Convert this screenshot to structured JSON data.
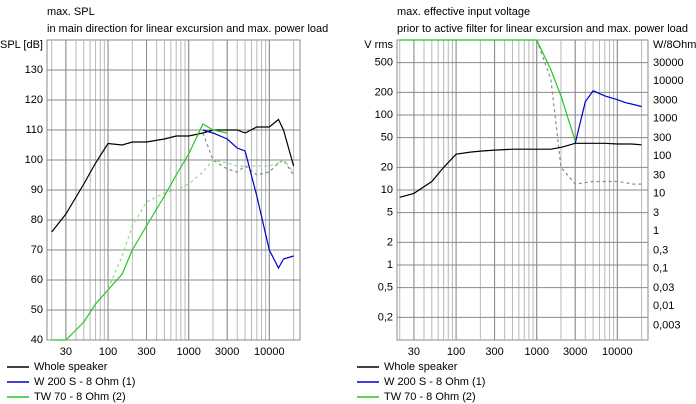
{
  "chart_data": [
    {
      "type": "line",
      "title": "max. SPL",
      "subtitle": "in main direction for linear excursion and max. power load",
      "y_label": "SPL [dB]",
      "xscale": "log",
      "xlim": [
        17.5,
        24000
      ],
      "ylim": [
        40,
        140
      ],
      "xticks": [
        30,
        100,
        300,
        1000,
        3000,
        10000
      ],
      "xgrid": [
        20,
        30,
        40,
        50,
        60,
        70,
        80,
        90,
        100,
        200,
        300,
        400,
        500,
        600,
        700,
        800,
        900,
        1000,
        2000,
        3000,
        4000,
        5000,
        6000,
        7000,
        8000,
        9000,
        10000,
        20000
      ],
      "yticks": [
        40,
        50,
        60,
        70,
        80,
        90,
        100,
        110,
        120,
        130
      ],
      "grid": true,
      "x": [
        20,
        30,
        50,
        70,
        100,
        150,
        200,
        300,
        500,
        700,
        1000,
        1500,
        2000,
        3000,
        4000,
        5000,
        7000,
        10000,
        13000,
        15000,
        20000
      ],
      "series": [
        {
          "name": "Whole speaker",
          "color": "#000000",
          "values": [
            76,
            82,
            92,
            99,
            105.5,
            105,
            106,
            106,
            107,
            108,
            108,
            109,
            110,
            110,
            110,
            109,
            111,
            111,
            113.5,
            110,
            98
          ]
        },
        {
          "name": "W 200 S - 8 Ohm (1)",
          "color": "#0000c8",
          "values": [
            null,
            null,
            null,
            null,
            null,
            null,
            null,
            null,
            null,
            null,
            null,
            110,
            109,
            107,
            104,
            103,
            88,
            70,
            64,
            67,
            68
          ]
        },
        {
          "name": "TW 70 - 8 Ohm (2)",
          "color": "#22c822",
          "values": [
            40,
            40,
            46,
            52,
            56.7,
            62,
            70,
            78,
            88,
            95,
            102,
            112,
            110,
            109,
            null,
            null,
            null,
            null,
            null,
            null,
            null
          ]
        }
      ],
      "reference_series": [
        {
          "color": "#8a8a8a",
          "values": [
            null,
            null,
            null,
            null,
            null,
            null,
            null,
            null,
            null,
            null,
            null,
            109,
            100,
            97,
            96,
            98,
            95,
            96,
            99,
            100,
            95
          ]
        },
        {
          "color": "#8fdc8f",
          "values": [
            null,
            null,
            null,
            null,
            57,
            68,
            78,
            86,
            89,
            90,
            92,
            96,
            100,
            99,
            98,
            98,
            98,
            98,
            99,
            100,
            96
          ]
        }
      ]
    },
    {
      "type": "line",
      "title": "max. effective input voltage",
      "subtitle": "prior to active filter for linear excursion and max. power load",
      "y_label": "V rms",
      "y2_label": "W/8Ohm",
      "xscale": "log",
      "yscale": "log",
      "xlim": [
        18.5,
        24000
      ],
      "ylim": [
        0.1,
        1000
      ],
      "y2lim": [
        0.00125,
        125000
      ],
      "xticks": [
        30,
        100,
        300,
        1000,
        3000,
        10000
      ],
      "xgrid": [
        20,
        30,
        40,
        50,
        60,
        70,
        80,
        90,
        100,
        200,
        300,
        400,
        500,
        600,
        700,
        800,
        900,
        1000,
        2000,
        3000,
        4000,
        5000,
        6000,
        7000,
        8000,
        9000,
        10000,
        20000
      ],
      "yticks": [
        500,
        200,
        100,
        50,
        20,
        10,
        5,
        2,
        1,
        {
          "value": 0.5,
          "label": "0,5"
        },
        {
          "value": 0.2,
          "label": "0,2"
        }
      ],
      "y2ticks": [
        30000,
        10000,
        3000,
        1000,
        300,
        100,
        30,
        10,
        3,
        1,
        {
          "value": 0.3,
          "label": "0,3"
        },
        {
          "value": 0.1,
          "label": "0,1"
        },
        {
          "value": 0.03,
          "label": "0,03"
        },
        {
          "value": 0.01,
          "label": "0,01"
        },
        {
          "value": 0.003,
          "label": "0,003"
        }
      ],
      "grid": true,
      "x": [
        20,
        30,
        50,
        70,
        100,
        150,
        200,
        300,
        500,
        700,
        1000,
        1500,
        2000,
        3000,
        4000,
        5000,
        7000,
        10000,
        13000,
        15000,
        20000
      ],
      "series": [
        {
          "name": "Whole speaker",
          "color": "#000000",
          "values": [
            8,
            9,
            13,
            20,
            30,
            32,
            33,
            34,
            35,
            35,
            35,
            35,
            37,
            42,
            42,
            42,
            42,
            41,
            41,
            41,
            40
          ]
        },
        {
          "name": "W 200 S - 8 Ohm (1)",
          "color": "#0000c8",
          "values": [
            null,
            null,
            null,
            null,
            null,
            null,
            null,
            null,
            null,
            null,
            null,
            null,
            null,
            42,
            150,
            210,
            180,
            160,
            145,
            140,
            130
          ]
        },
        {
          "name": "TW 70 - 8 Ohm (2)",
          "color": "#22c822",
          "values": [
            1000,
            1000,
            1000,
            1000,
            1000,
            1000,
            1000,
            1000,
            1000,
            1000,
            1000,
            400,
            180,
            45,
            null,
            null,
            null,
            null,
            null,
            null,
            null
          ]
        }
      ],
      "reference_series": [
        {
          "color": "#8a8a8a",
          "values": [
            null,
            null,
            null,
            null,
            null,
            null,
            null,
            null,
            null,
            null,
            1000,
            300,
            20,
            12,
            12.5,
            13,
            13,
            13,
            12.5,
            12,
            12
          ]
        }
      ]
    }
  ]
}
